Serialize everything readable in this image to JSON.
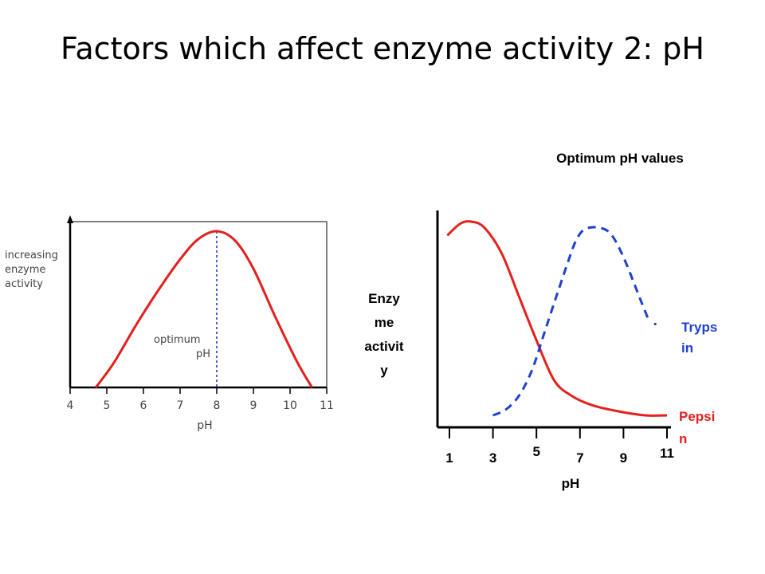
{
  "title": "Factors which affect enzyme activity 2: pH",
  "colors": {
    "curve": "#e3201b",
    "optimum_line": "#1f2fbf",
    "trypsin": "#1f3fd1",
    "pepsin_label": "#e3201b",
    "trypsin_label": "#1f3fd1"
  },
  "chart_data": [
    {
      "type": "line",
      "title": "",
      "xlabel": "pH",
      "ylabel": "increasing enzyme activity",
      "xlim": [
        4,
        11
      ],
      "ylim": [
        0,
        1
      ],
      "x_ticks": [
        "4",
        "5",
        "6",
        "7",
        "8",
        "9",
        "10",
        "11"
      ],
      "annotation": "optimum pH",
      "optimum_x": 8,
      "series": [
        {
          "x": [
            4.7,
            5.2,
            5.8,
            6.4,
            7.0,
            7.5,
            8.0,
            8.5,
            9.0,
            9.6,
            10.2,
            10.6
          ],
          "y": [
            0.0,
            0.16,
            0.4,
            0.62,
            0.82,
            0.95,
            1.0,
            0.94,
            0.76,
            0.45,
            0.16,
            0.0
          ]
        }
      ]
    },
    {
      "type": "line",
      "title": "Optimum pH values",
      "xlabel": "pH",
      "ylabel": "Enzy me activit y",
      "xlim": [
        1,
        11
      ],
      "ylim": [
        0,
        1
      ],
      "x_ticks": [
        "1",
        "3",
        "5",
        "7",
        "9",
        "11"
      ],
      "series": [
        {
          "name": "Pepsi n",
          "x": [
            0.9,
            1.5,
            2.0,
            2.6,
            3.4,
            4.2,
            5.0,
            5.8,
            6.6,
            7.6,
            8.8,
            10.0,
            11.0
          ],
          "y": [
            0.93,
            0.99,
            1.0,
            0.97,
            0.84,
            0.62,
            0.4,
            0.2,
            0.12,
            0.07,
            0.04,
            0.02,
            0.02
          ]
        },
        {
          "name": "Tryps in",
          "x": [
            3.0,
            3.6,
            4.2,
            4.8,
            5.4,
            6.0,
            6.4,
            6.8,
            7.2,
            7.8,
            8.4,
            9.0,
            9.8,
            10.2
          ],
          "y": [
            0.02,
            0.05,
            0.12,
            0.25,
            0.45,
            0.65,
            0.78,
            0.9,
            0.96,
            0.97,
            0.94,
            0.82,
            0.6,
            0.49
          ]
        }
      ]
    }
  ]
}
